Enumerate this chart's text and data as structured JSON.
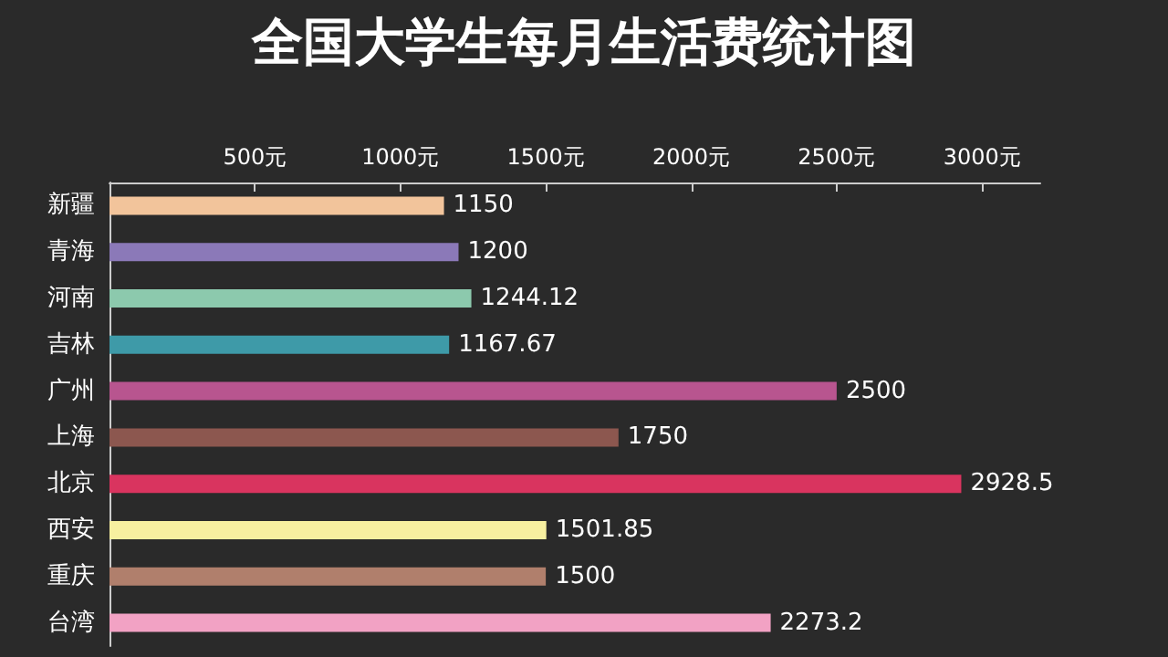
{
  "chart_data": {
    "type": "bar",
    "orientation": "horizontal",
    "title": "全国大学生每月生活费统计图",
    "categories": [
      "新疆",
      "青海",
      "河南",
      "吉林",
      "广州",
      "上海",
      "北京",
      "西安",
      "重庆",
      "台湾"
    ],
    "values": [
      1150,
      1200,
      1244.12,
      1167.67,
      2500,
      1750,
      2928.5,
      1501.85,
      1500,
      2273.2
    ],
    "data_labels": true,
    "colors": [
      "#f2c49b",
      "#8b79b8",
      "#8cc9ad",
      "#3e9aa8",
      "#b8558f",
      "#8c574f",
      "#d9345f",
      "#f7f0a0",
      "#b07f6c",
      "#f2a2c4"
    ],
    "xlim": [
      0,
      3200
    ],
    "xticks": [
      {
        "value": 500,
        "label": "500元"
      },
      {
        "value": 1000,
        "label": "1000元"
      },
      {
        "value": 1500,
        "label": "1500元"
      },
      {
        "value": 2000,
        "label": "2000元"
      },
      {
        "value": 2500,
        "label": "2500元"
      },
      {
        "value": 3000,
        "label": "3000元"
      }
    ],
    "grid": false
  }
}
